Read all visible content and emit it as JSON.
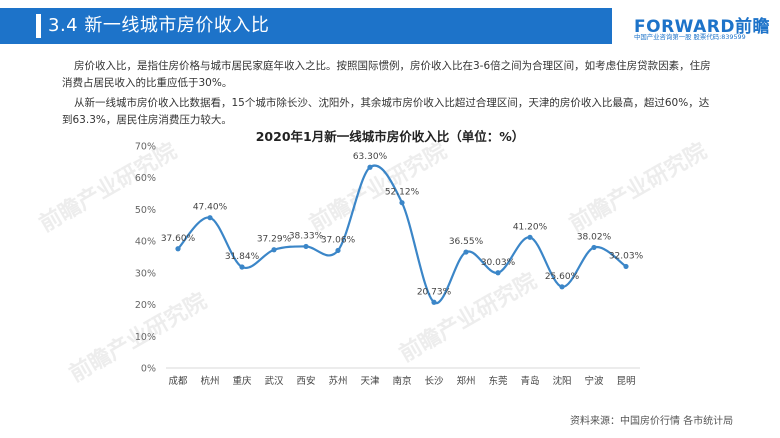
{
  "header": {
    "title": "3.4  新一线城市房价收入比",
    "logo_main": "FORWARD前瞻",
    "logo_sub": "中国产业咨询第一股 股票代码:839599"
  },
  "intro": {
    "p1": "房价收入比，是指住房价格与城市居民家庭年收入之比。按照国际惯例，房价收入比在3-6倍之间为合理区间，如考虑住房贷款因素，住房消费占居民收入的比重应低于30%。",
    "p2": "从新一线城市房价收入比数据看，15个城市除长沙、沈阳外，其余城市房价收入比超过合理区间，天津的房价收入比最高，超过60%，达到63.3%，居民住房消费压力较大。"
  },
  "watermark": "前瞻产业研究院",
  "source": "资料来源：中国房价行情 各市统计局",
  "chart_data": {
    "type": "line",
    "title": "2020年1月新一线城市房价收入比（单位：%）",
    "categories": [
      "成都",
      "杭州",
      "重庆",
      "武汉",
      "西安",
      "苏州",
      "天津",
      "南京",
      "长沙",
      "郑州",
      "东莞",
      "青岛",
      "沈阳",
      "宁波",
      "昆明"
    ],
    "values": [
      37.6,
      47.4,
      31.84,
      37.29,
      38.33,
      37.06,
      63.3,
      52.12,
      20.73,
      36.55,
      30.03,
      41.2,
      25.6,
      38.02,
      32.03
    ],
    "data_labels": [
      "37.60%",
      "47.40%",
      "31.84%",
      "37.29%",
      "38.33%",
      "37.06%",
      "63.30%",
      "52.12%",
      "20.73%",
      "36.55%",
      "30.03%",
      "41.20%",
      "25.60%",
      "38.02%",
      "32.03%"
    ],
    "yticks": [
      "0%",
      "10%",
      "20%",
      "30%",
      "40%",
      "50%",
      "60%",
      "70%"
    ],
    "ylim": [
      0,
      70
    ],
    "grid": false,
    "legend": "none",
    "line_color": "#3b86c8",
    "smooth": true
  }
}
